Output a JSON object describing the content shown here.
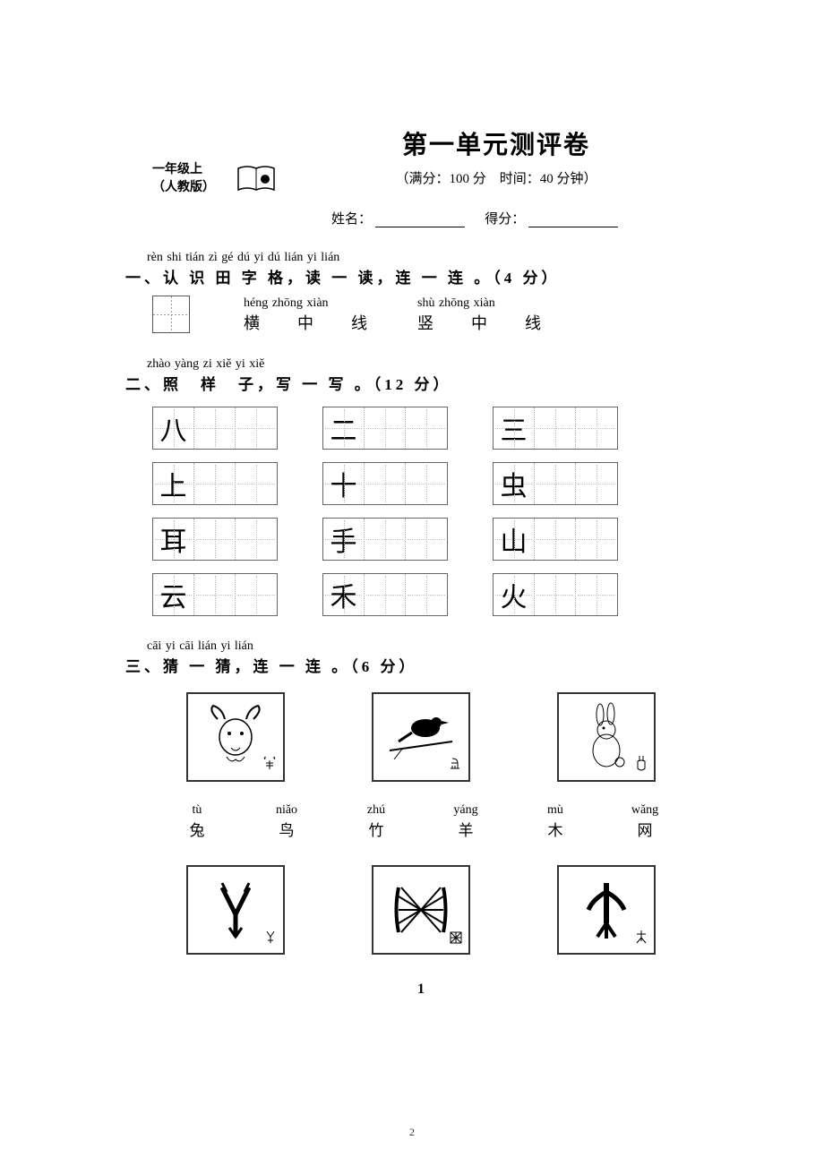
{
  "header": {
    "grade_line1": "一年级上",
    "grade_line2": "（人教版）",
    "title": "第一单元测评卷",
    "subtitle": "（满分：100 分　时间：40 分钟）",
    "name_label": "姓名：",
    "score_label": "得分："
  },
  "section1": {
    "pinyin": "rèn shi tián zì gé   dú yi dú   lián yi lián",
    "heading": "一、认 识 田 字 格，读 一 读，连 一 连 。（4 分）",
    "labels": [
      {
        "pinyin": "héng zhōng xiàn",
        "hanzi": "横　中　线"
      },
      {
        "pinyin": "shù zhōng xiàn",
        "hanzi": "竖　中　线"
      }
    ]
  },
  "section2": {
    "pinyin": "zhào yàng zi   xiě yi xiě",
    "heading": "二、照　样　子，写 一 写 。（12 分）",
    "cells_per_block": 3,
    "rows": [
      [
        "八",
        "二",
        "三"
      ],
      [
        "上",
        "十",
        "虫"
      ],
      [
        "耳",
        "手",
        "山"
      ],
      [
        "云",
        "禾",
        "火"
      ]
    ],
    "char_fontfamily": "KaiTi",
    "char_fontsize": 30,
    "border_color": "#666666",
    "guide_color": "#bbbbbb"
  },
  "section3": {
    "pinyin": "cāi yi cāi   lián yi lián",
    "heading": "三、猜 一 猜，连 一 连 。（6 分）",
    "top_images": [
      "goat",
      "bird",
      "rabbit"
    ],
    "labels": [
      {
        "pinyin": "tù",
        "hanzi": "兔"
      },
      {
        "pinyin": "niǎo",
        "hanzi": "鸟"
      },
      {
        "pinyin": "zhú",
        "hanzi": "竹"
      },
      {
        "pinyin": "yáng",
        "hanzi": "羊"
      },
      {
        "pinyin": "mù",
        "hanzi": "木"
      },
      {
        "pinyin": "wǎng",
        "hanzi": "网"
      }
    ],
    "bottom_images": [
      "ancient-zhu",
      "ancient-wang",
      "ancient-mu"
    ]
  },
  "page_number_main": "1",
  "page_number_small": "2",
  "colors": {
    "text": "#000000",
    "background": "#ffffff",
    "box_border": "#333333"
  }
}
